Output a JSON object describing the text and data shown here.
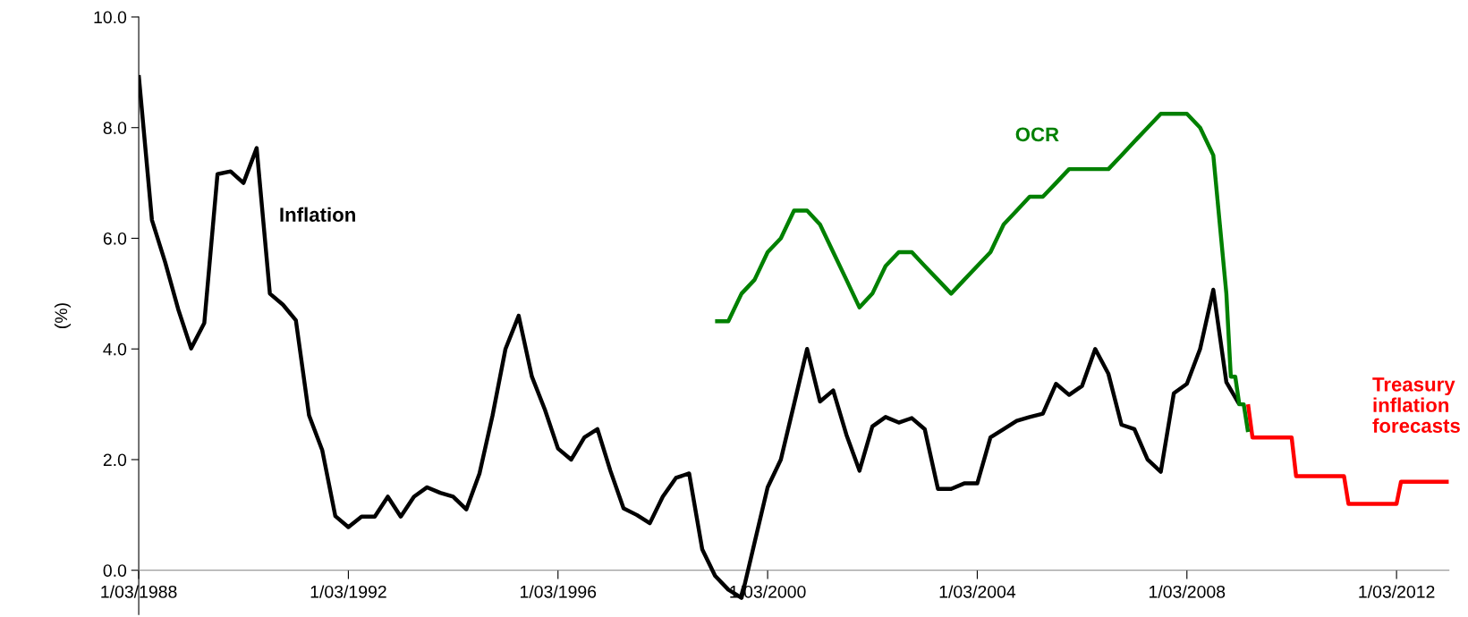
{
  "chart_data": {
    "type": "line",
    "ylabel": "(%)",
    "x": [
      "1988-03",
      "1988-06",
      "1988-09",
      "1988-12",
      "1989-03",
      "1989-06",
      "1989-09",
      "1989-12",
      "1990-03",
      "1990-06",
      "1990-09",
      "1990-12",
      "1991-03",
      "1991-06",
      "1991-09",
      "1991-12",
      "1992-03",
      "1992-06",
      "1992-09",
      "1992-12",
      "1993-03",
      "1993-06",
      "1993-09",
      "1993-12",
      "1994-03",
      "1994-06",
      "1994-09",
      "1994-12",
      "1995-03",
      "1995-06",
      "1995-09",
      "1995-12",
      "1996-03",
      "1996-06",
      "1996-09",
      "1996-12",
      "1997-03",
      "1997-06",
      "1997-09",
      "1997-12",
      "1998-03",
      "1998-06",
      "1998-09",
      "1998-12",
      "1999-03",
      "1999-06",
      "1999-09",
      "1999-12",
      "2000-03",
      "2000-06",
      "2000-09",
      "2000-12",
      "2001-03",
      "2001-06",
      "2001-09",
      "2001-12",
      "2002-03",
      "2002-06",
      "2002-09",
      "2002-12",
      "2003-03",
      "2003-06",
      "2003-09",
      "2003-12",
      "2004-03",
      "2004-06",
      "2004-09",
      "2004-12",
      "2005-03",
      "2005-06",
      "2005-09",
      "2005-12",
      "2006-03",
      "2006-06",
      "2006-09",
      "2006-12",
      "2007-03",
      "2007-06",
      "2007-09",
      "2007-12",
      "2008-03",
      "2008-06",
      "2008-09",
      "2008-12",
      "2009-03"
    ],
    "series": [
      {
        "name": "Inflation",
        "color": "#000000",
        "values": [
          8.95,
          6.33,
          5.57,
          4.72,
          4.01,
          4.47,
          7.16,
          7.21,
          7.0,
          7.63,
          5.0,
          4.8,
          4.52,
          2.8,
          2.17,
          0.98,
          0.78,
          0.97,
          0.97,
          1.33,
          0.97,
          1.33,
          1.5,
          1.4,
          1.33,
          1.1,
          1.75,
          2.8,
          4.0,
          4.6,
          3.5,
          2.9,
          2.2,
          2.0,
          2.4,
          2.55,
          1.8,
          1.12,
          1.0,
          0.85,
          1.33,
          1.67,
          1.75,
          0.38,
          -0.1,
          -0.35,
          -0.5,
          0.5,
          1.5,
          2.0,
          3.0,
          4.0,
          3.05,
          3.25,
          2.45,
          1.8,
          2.6,
          2.77,
          2.67,
          2.75,
          2.55,
          1.47,
          1.47,
          1.57,
          1.57,
          2.4,
          2.55,
          2.7,
          2.77,
          2.83,
          3.37,
          3.17,
          3.33,
          4.0,
          3.55,
          2.63,
          2.55,
          2.0,
          1.78,
          3.2,
          3.37,
          4.0,
          5.07,
          3.4,
          3.0
        ]
      },
      {
        "name": "OCR",
        "color": "#008000",
        "x": [
          "1999-03",
          "1999-06",
          "1999-09",
          "1999-12",
          "2000-03",
          "2000-06",
          "2000-09",
          "2000-12",
          "2001-03",
          "2001-06",
          "2001-09",
          "2001-12",
          "2002-03",
          "2002-06",
          "2002-09",
          "2002-12",
          "2003-03",
          "2003-06",
          "2003-09",
          "2003-12",
          "2004-03",
          "2004-06",
          "2004-09",
          "2004-12",
          "2005-03",
          "2005-06",
          "2005-09",
          "2005-12",
          "2006-03",
          "2006-06",
          "2006-09",
          "2006-12",
          "2007-03",
          "2007-06",
          "2007-09",
          "2007-12",
          "2008-03",
          "2008-06",
          "2008-09",
          "2008-12",
          "2009-01",
          "2009-02",
          "2009-03",
          "2009-04",
          "2009-05"
        ],
        "values": [
          4.5,
          4.5,
          5.0,
          5.25,
          5.75,
          6.0,
          6.5,
          6.5,
          6.25,
          5.75,
          5.25,
          4.75,
          5.0,
          5.5,
          5.75,
          5.75,
          5.5,
          5.25,
          5.0,
          5.25,
          5.5,
          5.75,
          6.25,
          6.5,
          6.75,
          6.75,
          7.0,
          7.25,
          7.25,
          7.25,
          7.25,
          7.5,
          7.75,
          8.0,
          8.25,
          8.25,
          8.25,
          8.0,
          7.5,
          5.0,
          3.5,
          3.5,
          3.0,
          3.0,
          2.5
        ]
      },
      {
        "name": "Treasury\ninflation\nforecasts",
        "color": "#ff0000",
        "x": [
          "2009-05",
          "2009-06",
          "2010-03",
          "2010-04",
          "2011-03",
          "2011-04",
          "2012-03",
          "2012-04",
          "2013-03"
        ],
        "values": [
          3.0,
          2.4,
          2.4,
          1.7,
          1.7,
          1.2,
          1.2,
          1.6,
          1.6
        ]
      }
    ],
    "xlim": [
      "1988-03-01",
      "2013-03-01"
    ],
    "xticks": [
      {
        "value": "1988-03-01",
        "label": "1/03/1988"
      },
      {
        "value": "1992-03-01",
        "label": "1/03/1992"
      },
      {
        "value": "1996-03-01",
        "label": "1/03/1996"
      },
      {
        "value": "2000-03-01",
        "label": "1/03/2000"
      },
      {
        "value": "2004-03-01",
        "label": "1/03/2004"
      },
      {
        "value": "2008-03-01",
        "label": "1/03/2008"
      },
      {
        "value": "2012-03-01",
        "label": "1/03/2012"
      }
    ],
    "ylim": [
      -0.8,
      10
    ],
    "yticks": [
      {
        "value": 0,
        "label": "0.0"
      },
      {
        "value": 2,
        "label": "2.0"
      },
      {
        "value": 4,
        "label": "4.0"
      },
      {
        "value": 6,
        "label": "6.0"
      },
      {
        "value": 8,
        "label": "8.0"
      },
      {
        "value": 10,
        "label": "10.0"
      }
    ],
    "grid": false,
    "legend": false,
    "marker": "none",
    "line_style": "solid"
  }
}
